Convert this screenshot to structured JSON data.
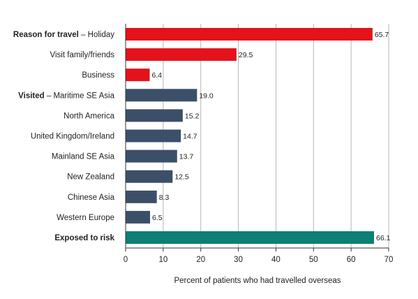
{
  "chart_data": {
    "type": "bar",
    "orientation": "horizontal",
    "xlabel": "Percent of patients who had travelled overseas",
    "xlim": [
      0,
      70
    ],
    "xticks": [
      0,
      10,
      20,
      30,
      40,
      50,
      60,
      70
    ],
    "grid": true,
    "rows": [
      {
        "bold": "Reason for travel",
        "label": " – Holiday",
        "value": 65.7,
        "value_label": "65.7",
        "color": "#e3121b"
      },
      {
        "bold": "",
        "label": "Visit family/friends",
        "value": 29.5,
        "value_label": "29.5",
        "color": "#e3121b"
      },
      {
        "bold": "",
        "label": "Business",
        "value": 6.4,
        "value_label": "6.4",
        "color": "#e3121b"
      },
      {
        "bold": "Visited",
        "label": " – Maritime SE Asia",
        "value": 19.0,
        "value_label": "19.0",
        "color": "#3b5068"
      },
      {
        "bold": "",
        "label": "North America",
        "value": 15.2,
        "value_label": "15.2",
        "color": "#3b5068"
      },
      {
        "bold": "",
        "label": "United Kingdom/Ireland",
        "value": 14.7,
        "value_label": "14.7",
        "color": "#3b5068"
      },
      {
        "bold": "",
        "label": "Mainland SE Asia",
        "value": 13.7,
        "value_label": "13.7",
        "color": "#3b5068"
      },
      {
        "bold": "",
        "label": "New Zealand",
        "value": 12.5,
        "value_label": "12.5",
        "color": "#3b5068"
      },
      {
        "bold": "",
        "label": "Chinese Asia",
        "value": 8.3,
        "value_label": "8.3",
        "color": "#3b5068"
      },
      {
        "bold": "",
        "label": "Western Europe",
        "value": 6.5,
        "value_label": "6.5",
        "color": "#3b5068"
      },
      {
        "bold": "Exposed to risk",
        "label": "",
        "value": 66.1,
        "value_label": "66.1",
        "color": "#0d7f75"
      }
    ]
  }
}
